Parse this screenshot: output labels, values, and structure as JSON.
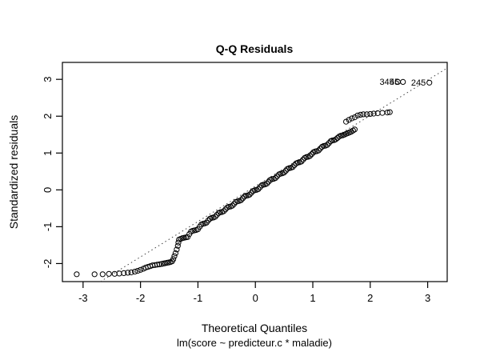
{
  "figure": {
    "title": "Q-Q Residuals",
    "xlabel": "Theoretical Quantiles",
    "ylabel": "Standardized residuals",
    "sublabel": "lm(score ~ predicteur.c * maladie)"
  },
  "chart_data": {
    "type": "scatter",
    "title": "Q-Q Residuals",
    "xlabel": "Theoretical Quantiles",
    "ylabel": "Standardized residuals",
    "model_caption": "lm(score ~ predicteur.c * maladie)",
    "marker": "open-circle",
    "grid": false,
    "xlim": [
      -3.36,
      3.34
    ],
    "ylim": [
      -2.49,
      3.46
    ],
    "x_ticks": [
      -3,
      -2,
      -1,
      0,
      1,
      2,
      3
    ],
    "y_ticks": [
      -2,
      -1,
      0,
      1,
      2,
      3
    ],
    "reference_line": {
      "style": "dotted",
      "slope": 0.96,
      "intercept": 0.1
    },
    "points": [
      [
        -3.11,
        -2.29
      ],
      [
        -2.8,
        -2.29
      ],
      [
        -2.66,
        -2.29
      ],
      [
        -2.55,
        -2.28
      ],
      [
        -2.45,
        -2.28
      ],
      [
        -2.37,
        -2.27
      ],
      [
        -2.29,
        -2.26
      ],
      [
        -2.22,
        -2.25
      ],
      [
        -2.16,
        -2.24
      ],
      [
        -2.1,
        -2.22
      ],
      [
        -2.05,
        -2.2
      ],
      [
        -2.0,
        -2.17
      ],
      [
        -1.95,
        -2.14
      ],
      [
        -1.91,
        -2.11
      ],
      [
        -1.87,
        -2.09
      ],
      [
        -1.83,
        -2.07
      ],
      [
        -1.79,
        -2.05
      ],
      [
        -1.75,
        -2.04
      ],
      [
        -1.71,
        -2.03
      ],
      [
        -1.67,
        -2.02
      ],
      [
        -1.63,
        -2.01
      ],
      [
        -1.6,
        -2.0
      ],
      [
        -1.57,
        -1.99
      ],
      [
        -1.54,
        -1.98
      ],
      [
        -1.51,
        -1.97
      ],
      [
        -1.48,
        -1.96
      ],
      [
        -1.45,
        -1.94
      ],
      [
        -1.43,
        -1.88
      ],
      [
        -1.41,
        -1.8
      ],
      [
        -1.39,
        -1.72
      ],
      [
        -1.37,
        -1.62
      ],
      [
        -1.35,
        -1.52
      ],
      [
        -1.34,
        -1.43
      ],
      [
        -1.33,
        -1.35
      ],
      [
        -1.3,
        -1.33
      ],
      [
        -1.27,
        -1.31
      ],
      [
        -1.24,
        -1.3
      ],
      [
        -1.21,
        -1.29
      ],
      [
        -1.18,
        -1.28
      ],
      [
        -1.15,
        -1.2
      ],
      [
        -1.12,
        -1.13
      ],
      [
        -1.09,
        -1.11
      ],
      [
        -1.06,
        -1.1
      ],
      [
        -1.03,
        -1.09
      ],
      [
        -1.0,
        -1.07
      ],
      [
        -0.97,
        -1.0
      ],
      [
        -0.94,
        -0.94
      ],
      [
        -0.91,
        -0.92
      ],
      [
        -0.88,
        -0.91
      ],
      [
        -0.85,
        -0.89
      ],
      [
        -0.82,
        -0.83
      ],
      [
        -0.79,
        -0.78
      ],
      [
        -0.76,
        -0.76
      ],
      [
        -0.73,
        -0.75
      ],
      [
        -0.7,
        -0.73
      ],
      [
        -0.67,
        -0.68
      ],
      [
        -0.64,
        -0.63
      ],
      [
        -0.61,
        -0.61
      ],
      [
        -0.58,
        -0.6
      ],
      [
        -0.55,
        -0.58
      ],
      [
        -0.52,
        -0.53
      ],
      [
        -0.49,
        -0.48
      ],
      [
        -0.46,
        -0.46
      ],
      [
        -0.43,
        -0.45
      ],
      [
        -0.4,
        -0.43
      ],
      [
        -0.37,
        -0.38
      ],
      [
        -0.34,
        -0.33
      ],
      [
        -0.31,
        -0.31
      ],
      [
        -0.28,
        -0.3
      ],
      [
        -0.25,
        -0.28
      ],
      [
        -0.22,
        -0.23
      ],
      [
        -0.19,
        -0.18
      ],
      [
        -0.16,
        -0.16
      ],
      [
        -0.13,
        -0.15
      ],
      [
        -0.1,
        -0.13
      ],
      [
        -0.07,
        -0.08
      ],
      [
        -0.04,
        -0.03
      ],
      [
        -0.01,
        -0.01
      ],
      [
        0.02,
        0.0
      ],
      [
        0.05,
        0.02
      ],
      [
        0.08,
        0.07
      ],
      [
        0.11,
        0.12
      ],
      [
        0.14,
        0.14
      ],
      [
        0.17,
        0.15
      ],
      [
        0.2,
        0.17
      ],
      [
        0.23,
        0.22
      ],
      [
        0.26,
        0.27
      ],
      [
        0.29,
        0.29
      ],
      [
        0.32,
        0.3
      ],
      [
        0.35,
        0.32
      ],
      [
        0.38,
        0.37
      ],
      [
        0.41,
        0.42
      ],
      [
        0.44,
        0.44
      ],
      [
        0.47,
        0.45
      ],
      [
        0.5,
        0.47
      ],
      [
        0.53,
        0.52
      ],
      [
        0.56,
        0.57
      ],
      [
        0.59,
        0.59
      ],
      [
        0.62,
        0.6
      ],
      [
        0.65,
        0.62
      ],
      [
        0.68,
        0.67
      ],
      [
        0.71,
        0.72
      ],
      [
        0.74,
        0.74
      ],
      [
        0.77,
        0.75
      ],
      [
        0.8,
        0.77
      ],
      [
        0.83,
        0.82
      ],
      [
        0.86,
        0.87
      ],
      [
        0.89,
        0.89
      ],
      [
        0.92,
        0.9
      ],
      [
        0.95,
        0.92
      ],
      [
        0.98,
        0.97
      ],
      [
        1.01,
        1.02
      ],
      [
        1.04,
        1.04
      ],
      [
        1.07,
        1.05
      ],
      [
        1.1,
        1.07
      ],
      [
        1.13,
        1.12
      ],
      [
        1.16,
        1.17
      ],
      [
        1.19,
        1.19
      ],
      [
        1.22,
        1.2
      ],
      [
        1.25,
        1.22
      ],
      [
        1.28,
        1.27
      ],
      [
        1.31,
        1.32
      ],
      [
        1.34,
        1.34
      ],
      [
        1.37,
        1.35
      ],
      [
        1.4,
        1.37
      ],
      [
        1.43,
        1.41
      ],
      [
        1.46,
        1.45
      ],
      [
        1.49,
        1.47
      ],
      [
        1.52,
        1.48
      ],
      [
        1.55,
        1.5
      ],
      [
        1.58,
        1.52
      ],
      [
        1.61,
        1.54
      ],
      [
        1.64,
        1.56
      ],
      [
        1.67,
        1.58
      ],
      [
        1.7,
        1.61
      ],
      [
        1.73,
        1.64
      ],
      [
        1.58,
        1.85
      ],
      [
        1.63,
        1.9
      ],
      [
        1.68,
        1.94
      ],
      [
        1.73,
        1.97
      ],
      [
        1.78,
        2.02
      ],
      [
        1.83,
        2.04
      ],
      [
        1.88,
        2.05
      ],
      [
        1.94,
        2.05
      ],
      [
        2.0,
        2.06
      ],
      [
        2.06,
        2.07
      ],
      [
        2.13,
        2.08
      ],
      [
        2.21,
        2.09
      ],
      [
        2.3,
        2.1
      ],
      [
        2.34,
        2.11
      ]
    ],
    "labeled_points": [
      {
        "label": "345",
        "q": 2.48,
        "v": 2.93
      },
      {
        "label": "45",
        "q": 2.57,
        "v": 2.93
      },
      {
        "label": "245",
        "q": 3.03,
        "v": 2.91
      }
    ],
    "colors": {
      "foreground": "#000000",
      "background": "#ffffff",
      "reference_line": "#404040"
    }
  }
}
